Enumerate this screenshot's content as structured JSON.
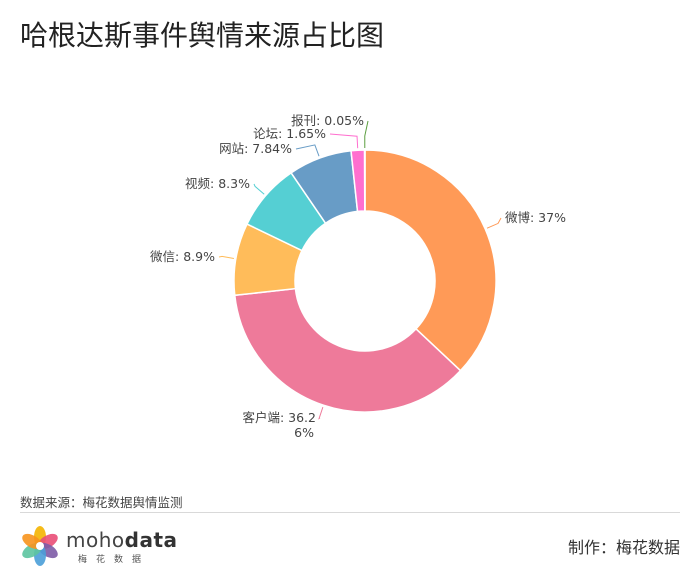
{
  "title": "哈根达斯事件舆情来源占比图",
  "source": "数据来源：梅花数据舆情监测",
  "maker": "制作：梅花数据",
  "logo": {
    "brand_plain": "moho",
    "brand_bold": "data",
    "sub": "梅花数据",
    "petal_colors": [
      "#f4b400",
      "#e94e77",
      "#7d5ba6",
      "#4a9fd8",
      "#5cc4a0",
      "#f7941d"
    ]
  },
  "chart_data": {
    "type": "pie",
    "donut": true,
    "start": "top",
    "direction": "clockwise",
    "slices": [
      {
        "name": "微博",
        "value": 37,
        "label": "微博: 37%",
        "color": "#ff9a57"
      },
      {
        "name": "客户端",
        "value": 36.26,
        "label": "客户端: 36.26%",
        "color": "#ee7a9a"
      },
      {
        "name": "微信",
        "value": 8.9,
        "label": "微信: 8.9%",
        "color": "#ffbc5a"
      },
      {
        "name": "视频",
        "value": 8.3,
        "label": "视频: 8.3%",
        "color": "#55cfd3"
      },
      {
        "name": "网站",
        "value": 7.84,
        "label": "网站: 7.84%",
        "color": "#689cc6"
      },
      {
        "name": "论坛",
        "value": 1.65,
        "label": "论坛: 1.65%",
        "color": "#ff6fcf"
      },
      {
        "name": "报刊",
        "value": 0.05,
        "label": "报刊: 0.05%",
        "color": "#5b9e3f"
      }
    ]
  }
}
